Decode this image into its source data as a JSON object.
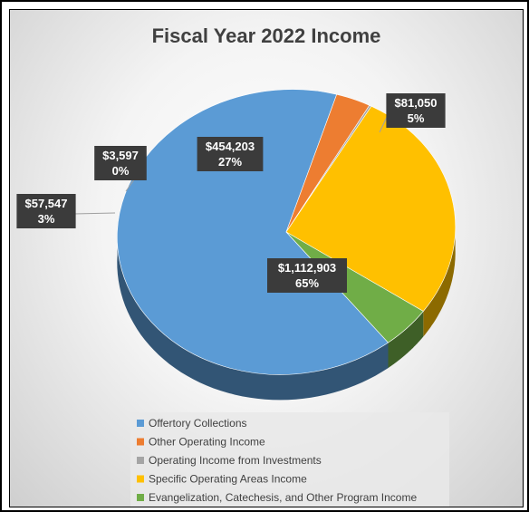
{
  "chart_data": {
    "type": "pie",
    "title": "Fiscal Year 2022 Income",
    "slices": [
      {
        "name": "Offertory Collections",
        "value": 1112903,
        "value_label": "$1,112,903",
        "pct_label": "65%",
        "color": "#5b9bd5"
      },
      {
        "name": "Other Operating Income",
        "value": 57547,
        "value_label": "$57,547",
        "pct_label": "3%",
        "color": "#ed7d31"
      },
      {
        "name": "Operating Income from Investments",
        "value": 3597,
        "value_label": "$3,597",
        "pct_label": "0%",
        "color": "#a5a5a5"
      },
      {
        "name": "Specific Operating Areas Income",
        "value": 454203,
        "value_label": "$454,203",
        "pct_label": "27%",
        "color": "#ffc000"
      },
      {
        "name": "Evangelization, Catechesis, and Other Program Income",
        "value": 81050,
        "value_label": "$81,050",
        "pct_label": "5%",
        "color": "#70ad47"
      }
    ],
    "legend_position": "bottom",
    "style": "3d-pie"
  }
}
